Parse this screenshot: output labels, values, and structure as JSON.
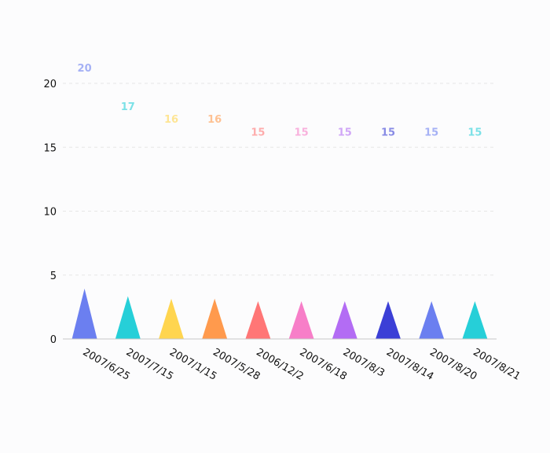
{
  "chart_data": {
    "type": "bar",
    "mark_shape": "triangle",
    "categories": [
      "2007/6/25",
      "2007/7/15",
      "2007/1/15",
      "2007/5/28",
      "2006/12/2",
      "2007/6/18",
      "2007/8/3",
      "2007/8/14",
      "2007/8/20",
      "2007/8/21"
    ],
    "values": [
      20,
      17,
      16,
      16,
      15,
      15,
      15,
      15,
      15,
      15
    ],
    "data_labels": [
      "20",
      "17",
      "16",
      "16",
      "15",
      "15",
      "15",
      "15",
      "15",
      "15"
    ],
    "colors": [
      "#6b7ff0",
      "#26cfd8",
      "#ffd54f",
      "#ff9a4d",
      "#ff7676",
      "#f77ec8",
      "#b36cf4",
      "#3b3fd6",
      "#6b7ff0",
      "#26cfd8"
    ],
    "yticks": [
      "0",
      "5",
      "10",
      "15",
      "20"
    ],
    "ylim": [
      0,
      20
    ],
    "grid": true,
    "title": "",
    "xlabel": "",
    "ylabel": ""
  }
}
